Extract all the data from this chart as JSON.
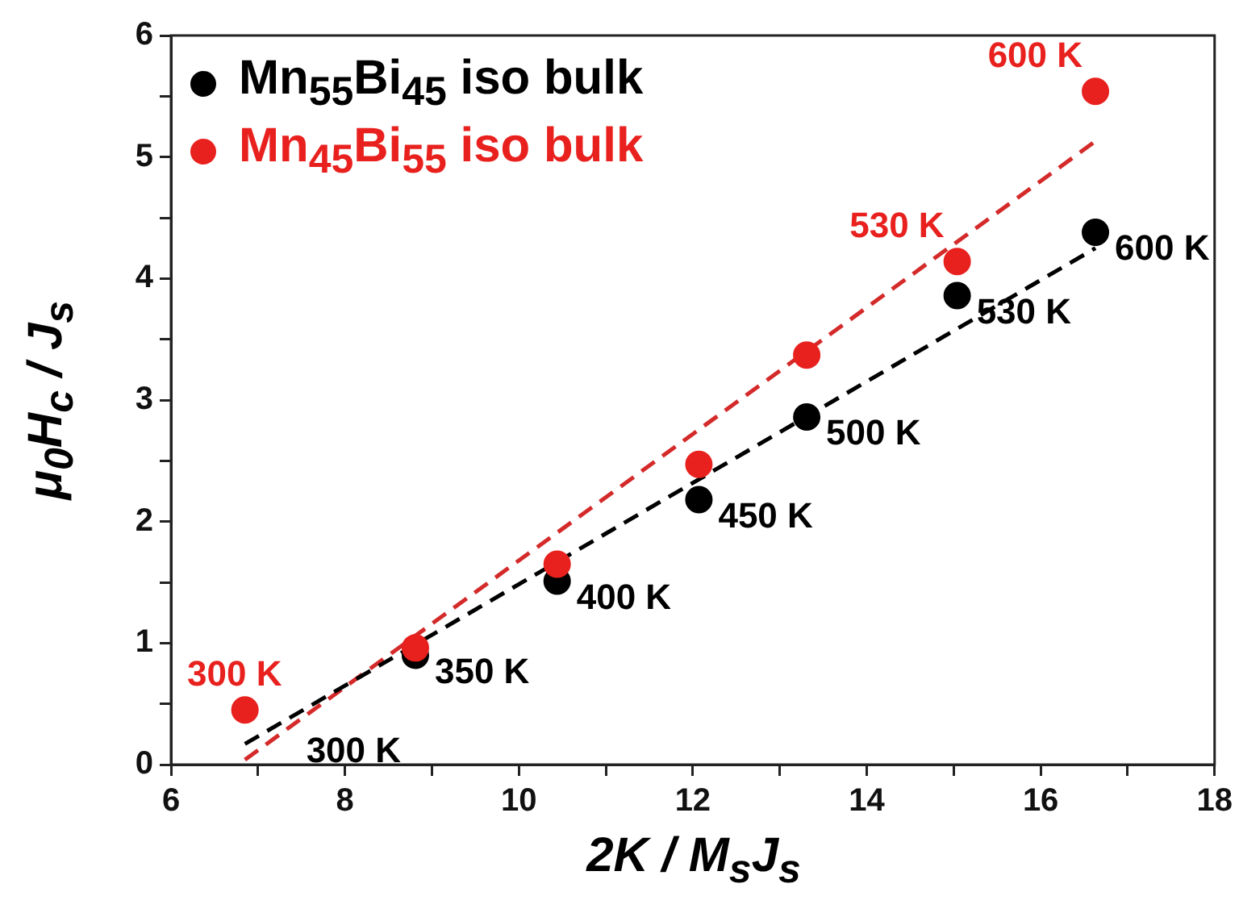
{
  "chart_data": {
    "type": "scatter",
    "xlabel": "2K / M$_{s}$J$_{s}$",
    "ylabel": "μ$_{0}$H$_{c}$ / J$_{s}$",
    "xlim": [
      6,
      18
    ],
    "xticks": [
      6,
      {
        "value": 7,
        "label": null
      },
      8,
      {
        "value": 9,
        "label": null
      },
      10,
      {
        "value": 11,
        "label": null
      },
      12,
      {
        "value": 13,
        "label": null
      },
      14,
      {
        "value": 15,
        "label": null
      },
      16,
      {
        "value": 17,
        "label": null
      },
      18
    ],
    "ylim": [
      0,
      6
    ],
    "yticks": [
      0,
      {
        "value": 0.5,
        "label": null
      },
      1,
      {
        "value": 1.5,
        "label": null
      },
      2,
      {
        "value": 2.5,
        "label": null
      },
      3,
      {
        "value": 3.5,
        "label": null
      },
      4,
      {
        "value": 4.5,
        "label": null
      },
      5,
      {
        "value": 5.5,
        "label": null
      },
      6
    ],
    "grid": false,
    "legend": "top left",
    "marker": "circle",
    "series": [
      {
        "name": "Mn$_{55}$Bi$_{45}$ iso bulk",
        "color": "#000000",
        "x": [
          8.81,
          10.44,
          12.07,
          13.31,
          15.04,
          16.63
        ],
        "values": [
          0.9,
          1.51,
          2.18,
          2.86,
          3.86,
          4.38
        ]
      },
      {
        "name": "Mn$_{45}$Bi$_{55}$ iso bulk",
        "color": "#e8211e",
        "x": [
          6.85,
          8.81,
          10.44,
          12.07,
          13.31,
          15.04,
          16.63
        ],
        "values": [
          0.45,
          0.96,
          1.65,
          2.47,
          3.37,
          4.14,
          5.54
        ]
      },
      {
        "type": "line",
        "color": "#000000",
        "marker": "none",
        "line_style": "dashed",
        "x": [
          6.85,
          16.63
        ],
        "values": [
          0.17,
          4.25
        ]
      },
      {
        "type": "line",
        "color": "#d42a2a",
        "marker": "none",
        "line_style": "dashed",
        "x": [
          6.85,
          16.63
        ],
        "values": [
          0.04,
          5.13
        ]
      }
    ],
    "annotations": [
      {
        "text": "300 K",
        "x": 6.85,
        "y": 0.17
      },
      {
        "text": "350 K",
        "x": 8.81,
        "y": 0.9
      },
      {
        "text": "400 K",
        "x": 10.44,
        "y": 1.51
      },
      {
        "text": "450 K",
        "x": 12.07,
        "y": 2.18
      },
      {
        "text": "500 K",
        "x": 13.31,
        "y": 2.86
      },
      {
        "text": "530 K",
        "x": 15.04,
        "y": 3.86
      },
      {
        "text": "600 K",
        "x": 16.63,
        "y": 4.38
      },
      {
        "text": "300 K",
        "x": 6.85,
        "y": 0.45
      },
      {
        "text": "530 K",
        "x": 15.04,
        "y": 4.14
      },
      {
        "text": "600 K",
        "x": 16.63,
        "y": 5.54
      }
    ]
  }
}
